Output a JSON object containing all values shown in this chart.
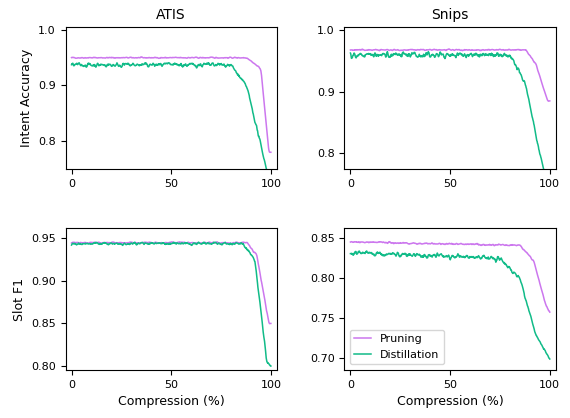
{
  "title_atis": "ATIS",
  "title_snips": "Snips",
  "ylabel_top": "Intent Accuracy",
  "ylabel_bottom": "Slot F1",
  "xlabel": "Compression (%)",
  "pruning_color": "#cc77ee",
  "distillation_color": "#11bb88",
  "legend_labels": [
    "Pruning",
    "Distillation"
  ],
  "ylim_atis_intent": [
    0.75,
    1.005
  ],
  "ylim_snips_intent": [
    0.775,
    1.005
  ],
  "ylim_atis_slot": [
    0.795,
    0.962
  ],
  "ylim_snips_slot": [
    0.685,
    0.862
  ],
  "yticks_atis_intent": [
    0.8,
    0.9,
    1.0
  ],
  "yticks_snips_intent": [
    0.8,
    0.9,
    1.0
  ],
  "yticks_atis_slot": [
    0.8,
    0.85,
    0.9,
    0.95
  ],
  "yticks_snips_slot": [
    0.7,
    0.75,
    0.8,
    0.85
  ],
  "xticks": [
    0,
    50,
    100
  ]
}
